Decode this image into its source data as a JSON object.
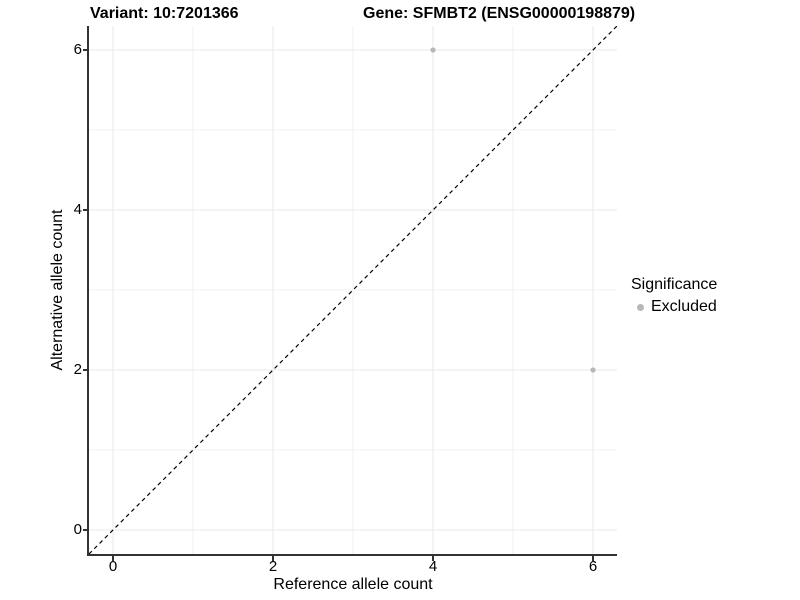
{
  "header": {
    "variant_title": "Variant: 10:7201366",
    "gene_title": "Gene: SFMBT2 (ENSG00000198879)"
  },
  "axes": {
    "x": {
      "label": "Reference allele count",
      "tick_labels": [
        "0",
        "2",
        "4",
        "6"
      ]
    },
    "y": {
      "label": "Alternative allele count",
      "tick_labels": [
        "0",
        "2",
        "4",
        "6"
      ]
    }
  },
  "legend": {
    "title": "Significance",
    "items": [
      {
        "label": "Excluded",
        "color": "#b8b8b8"
      }
    ]
  },
  "chart_data": {
    "type": "scatter",
    "title": "Variant: 10:7201366 — Gene: SFMBT2 (ENSG00000198879)",
    "xlabel": "Reference allele count",
    "ylabel": "Alternative allele count",
    "xlim": [
      -0.3,
      6.3
    ],
    "ylim": [
      -0.3,
      6.3
    ],
    "x_major_ticks": [
      0,
      2,
      4,
      6
    ],
    "y_major_ticks": [
      0,
      2,
      4,
      6
    ],
    "x_minor_ticks": [
      1,
      3,
      5
    ],
    "y_minor_ticks": [
      1,
      3,
      5
    ],
    "grid": true,
    "legend_position": "right",
    "series": [
      {
        "name": "Excluded",
        "color": "#b8b8b8",
        "points": [
          {
            "x": 4,
            "y": 6
          },
          {
            "x": 6,
            "y": 2
          }
        ]
      }
    ],
    "reference_line": {
      "type": "identity",
      "slope": 1,
      "intercept": 0,
      "linestyle": "dashed",
      "color": "#000000"
    }
  },
  "colors": {
    "grid_major": "#e8e8e8",
    "grid_minor": "#f2f2f2",
    "axis_line": "#333333",
    "point": "#b8b8b8"
  }
}
